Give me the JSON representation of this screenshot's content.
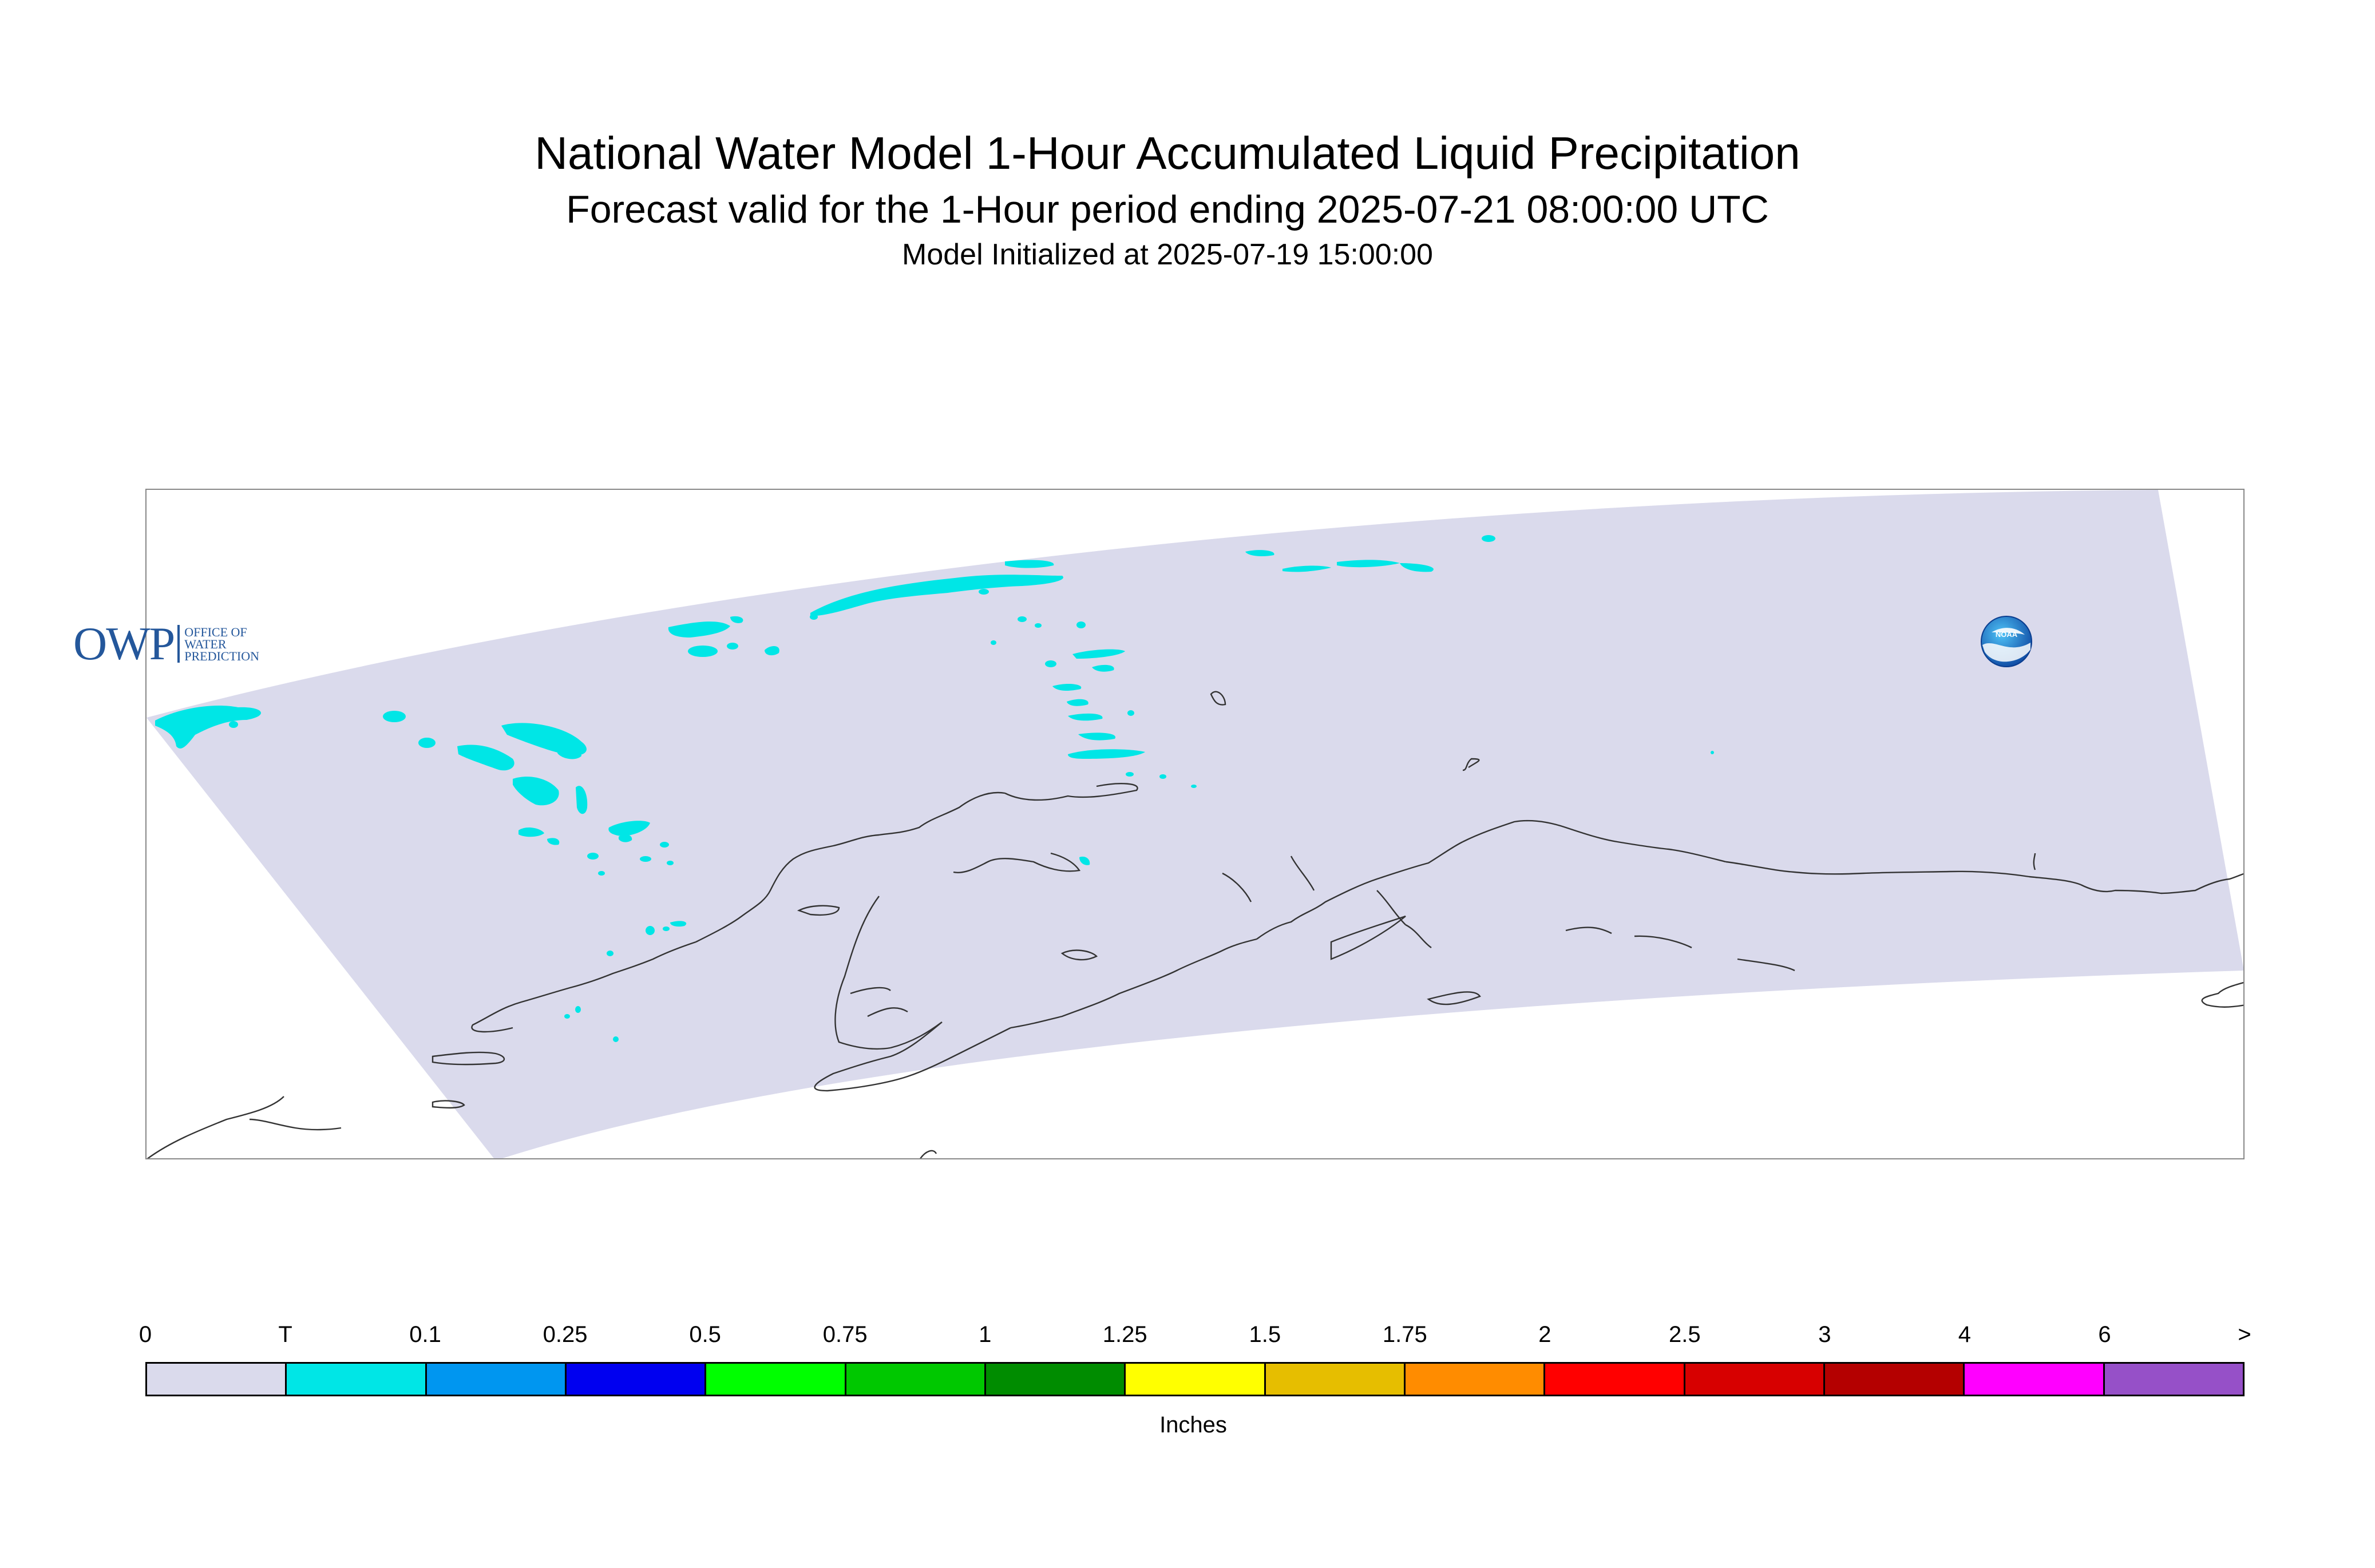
{
  "title": "National Water Model 1-Hour Accumulated Liquid Precipitation",
  "subtitle": "Forecast valid for the 1-Hour period ending 2025-07-21 08:00:00 UTC",
  "init_line": "Model Initialized at 2025-07-19 15:00:00",
  "map": {
    "region": "Alaska",
    "domain_fill": "#dadaec",
    "coastline_color": "#333333",
    "precip_color": "#00e6e6"
  },
  "logos": {
    "owp_mark": "OWP",
    "owp_text": "OFFICE OF\nWATER\nPREDICTION",
    "noaa": "NOAA"
  },
  "legend": {
    "units": "Inches",
    "ticks": [
      "0",
      "T",
      "0.1",
      "0.25",
      "0.5",
      "0.75",
      "1",
      "1.25",
      "1.5",
      "1.75",
      "2",
      "2.5",
      "3",
      "4",
      "6",
      ">"
    ],
    "colors": [
      "#dadaec",
      "#00e6e6",
      "#0096f0",
      "#0000f0",
      "#00ff00",
      "#00c800",
      "#008c00",
      "#ffff00",
      "#e6be00",
      "#ff8c00",
      "#ff0000",
      "#d70000",
      "#b40000",
      "#ff00ff",
      "#9650c8"
    ]
  }
}
